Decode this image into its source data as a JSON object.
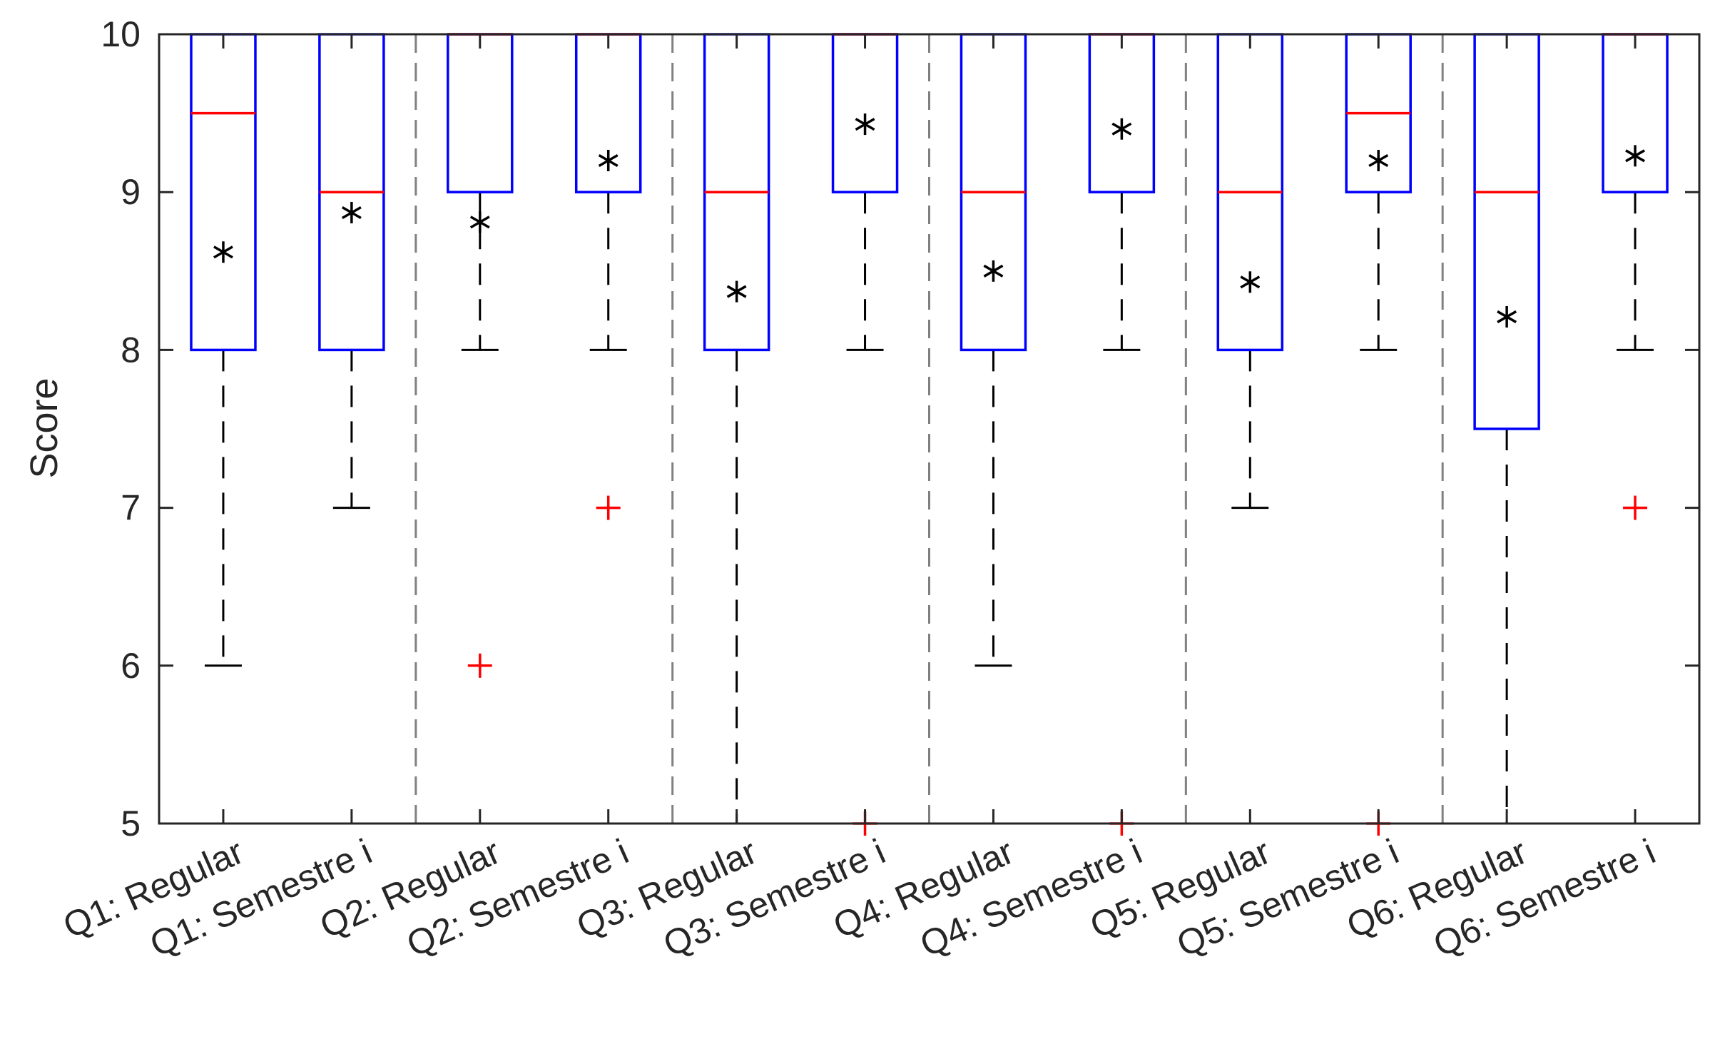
{
  "chart_data": {
    "type": "box",
    "ylabel": "Score",
    "ylim": [
      5,
      10
    ],
    "yticks": [
      5,
      6,
      7,
      8,
      9,
      10
    ],
    "grid": false,
    "separators": "dashed gray lines between question pairs",
    "colors": {
      "box": "#0000ff",
      "median": "#ff0000",
      "whisker": "#000000",
      "mean_marker": "#000000",
      "outlier": "#ff0000",
      "separator": "#808080",
      "axis": "#262626"
    },
    "categories": [
      "Q1: Regular",
      "Q1: Semestre i",
      "Q2: Regular",
      "Q2: Semestre i",
      "Q3: Regular",
      "Q3: Semestre i",
      "Q4: Regular",
      "Q4: Semestre i",
      "Q5: Regular",
      "Q5: Semestre i",
      "Q6: Regular",
      "Q6: Semestre i"
    ],
    "boxes": [
      {
        "q1": 8,
        "median": 9.5,
        "q3": 10,
        "whisker_low": 6,
        "whisker_high": 10,
        "mean": 8.62,
        "outliers": []
      },
      {
        "q1": 8,
        "median": 9,
        "q3": 10,
        "whisker_low": 7,
        "whisker_high": 10,
        "mean": 8.87,
        "outliers": []
      },
      {
        "q1": 9,
        "median": 10,
        "q3": 10,
        "whisker_low": 8,
        "whisker_high": 10,
        "mean": 8.81,
        "outliers": [
          6
        ]
      },
      {
        "q1": 9,
        "median": 10,
        "q3": 10,
        "whisker_low": 8,
        "whisker_high": 10,
        "mean": 9.2,
        "outliers": [
          7
        ]
      },
      {
        "q1": 8,
        "median": 9,
        "q3": 10,
        "whisker_low": 5,
        "whisker_high": 10,
        "mean": 8.37,
        "outliers": []
      },
      {
        "q1": 9,
        "median": 10,
        "q3": 10,
        "whisker_low": 8,
        "whisker_high": 10,
        "mean": 9.43,
        "outliers": [
          5
        ]
      },
      {
        "q1": 8,
        "median": 9,
        "q3": 10,
        "whisker_low": 6,
        "whisker_high": 10,
        "mean": 8.5,
        "outliers": []
      },
      {
        "q1": 9,
        "median": 10,
        "q3": 10,
        "whisker_low": 8,
        "whisker_high": 10,
        "mean": 9.4,
        "outliers": [
          5
        ]
      },
      {
        "q1": 8,
        "median": 9,
        "q3": 10,
        "whisker_low": 7,
        "whisker_high": 10,
        "mean": 8.43,
        "outliers": []
      },
      {
        "q1": 9,
        "median": 9.5,
        "q3": 10,
        "whisker_low": 8,
        "whisker_high": 10,
        "mean": 9.2,
        "outliers": [
          5
        ]
      },
      {
        "q1": 7.5,
        "median": 9,
        "q3": 10,
        "whisker_low": 5,
        "whisker_high": 10,
        "mean": 8.21,
        "outliers": []
      },
      {
        "q1": 9,
        "median": 10,
        "q3": 10,
        "whisker_low": 8,
        "whisker_high": 10,
        "mean": 9.23,
        "outliers": [
          7
        ]
      }
    ]
  }
}
